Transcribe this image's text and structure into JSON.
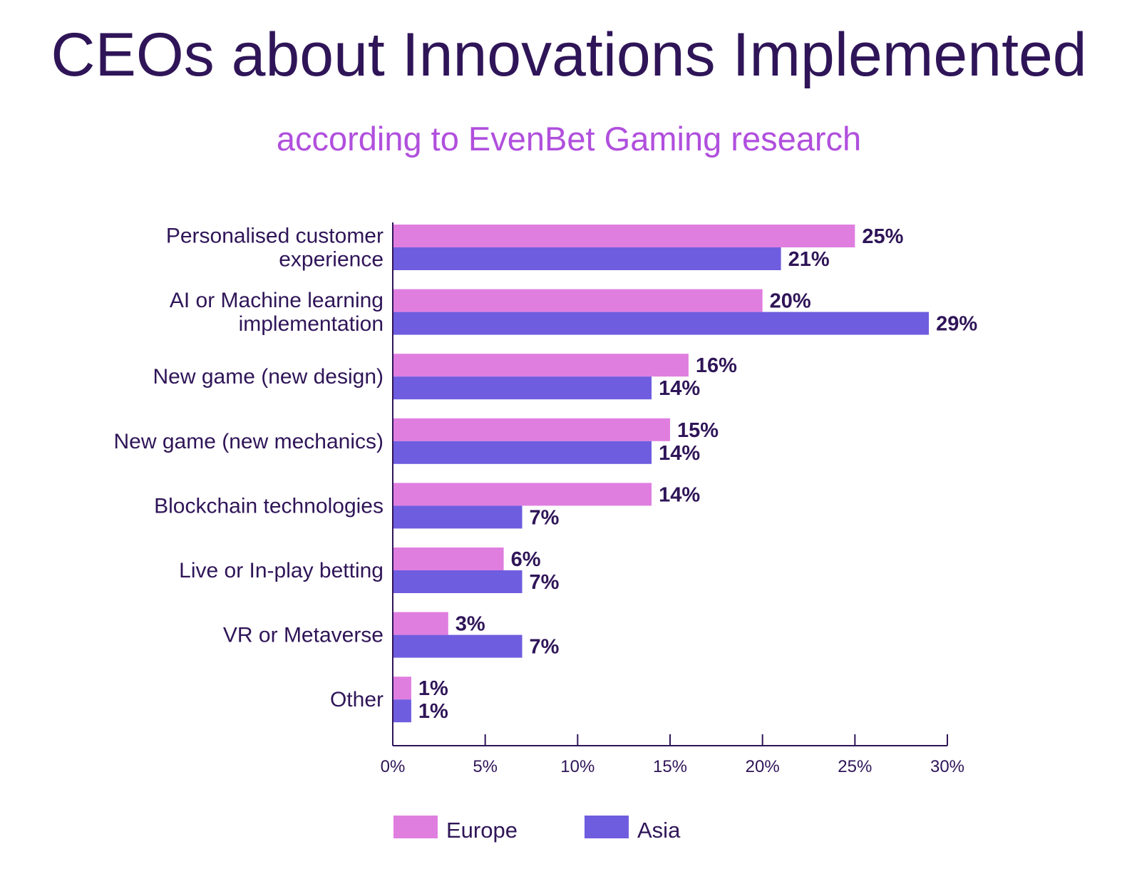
{
  "title": "CEOs about Innovations Implemented",
  "subtitle": "according to EvenBet Gaming research",
  "chart_data": {
    "type": "bar",
    "orientation": "horizontal",
    "title": "CEOs about Innovations Implemented",
    "subtitle": "according to EvenBet Gaming research",
    "categories": [
      [
        "Personalised customer",
        "experience"
      ],
      [
        "AI or Machine learning",
        "implementation"
      ],
      [
        "New game (new design)"
      ],
      [
        "New game (new mechanics)"
      ],
      [
        "Blockchain technologies"
      ],
      [
        "Live or In-play betting"
      ],
      [
        "VR or Metaverse"
      ],
      [
        "Other"
      ]
    ],
    "series": [
      {
        "name": "Europe",
        "color": "#e07ee0",
        "values": [
          25,
          20,
          16,
          15,
          14,
          6,
          3,
          1
        ]
      },
      {
        "name": "Asia",
        "color": "#6f5ddf",
        "values": [
          21,
          29,
          14,
          14,
          7,
          7,
          7,
          1
        ]
      }
    ],
    "value_suffix": "%",
    "xlim": [
      0,
      30
    ],
    "xticks": [
      0,
      5,
      10,
      15,
      20,
      25,
      30
    ],
    "xtick_labels": [
      "0%",
      "5%",
      "10%",
      "15%",
      "20%",
      "25%",
      "30%"
    ],
    "grid": false,
    "legend_position": "bottom-left"
  },
  "colors": {
    "text": "#2f1558",
    "subtitle": "#b04fdd",
    "axis": "#2f1558"
  }
}
